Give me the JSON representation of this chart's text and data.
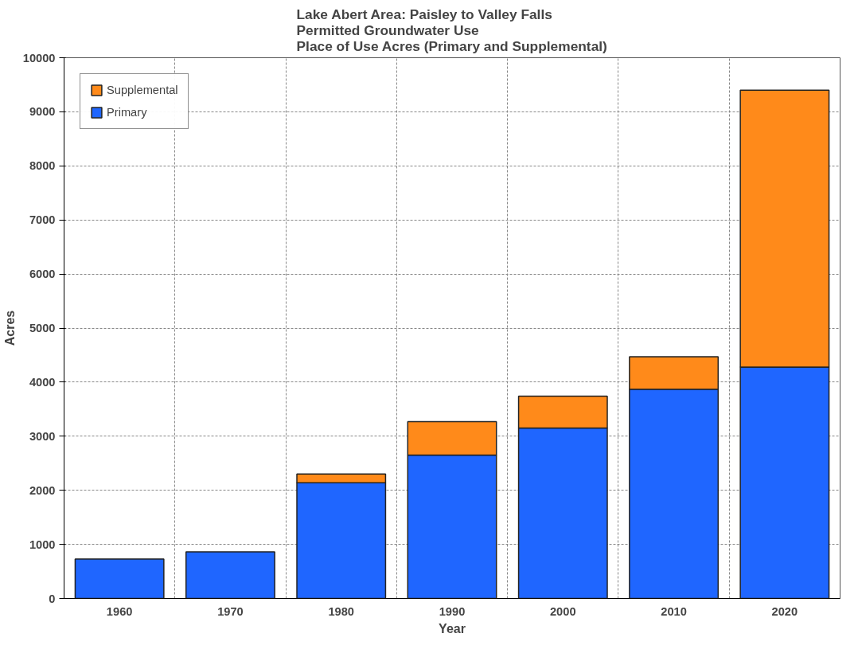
{
  "chart_data": {
    "type": "bar",
    "stacked": true,
    "title": "Lake Abert Area:  Paisley to Valley Falls\nPermitted Groundwater Use\nPlace of Use Acres (Primary and Supplemental)",
    "xlabel": "Year",
    "ylabel": "Acres",
    "categories": [
      "1960",
      "1970",
      "1980",
      "1990",
      "2000",
      "2010",
      "2020"
    ],
    "series": [
      {
        "name": "Primary",
        "color": "#1f66ff",
        "values": [
          730,
          860,
          2140,
          2650,
          3150,
          3870,
          4280
        ]
      },
      {
        "name": "Supplemental",
        "color": "#ff8a1a",
        "values": [
          null,
          null,
          160,
          620,
          590,
          600,
          5120
        ]
      }
    ],
    "ylim": [
      0,
      10000
    ],
    "yticks": [
      0,
      1000,
      2000,
      3000,
      4000,
      5000,
      6000,
      7000,
      8000,
      9000,
      10000
    ],
    "grid": true,
    "legend": "top left"
  }
}
